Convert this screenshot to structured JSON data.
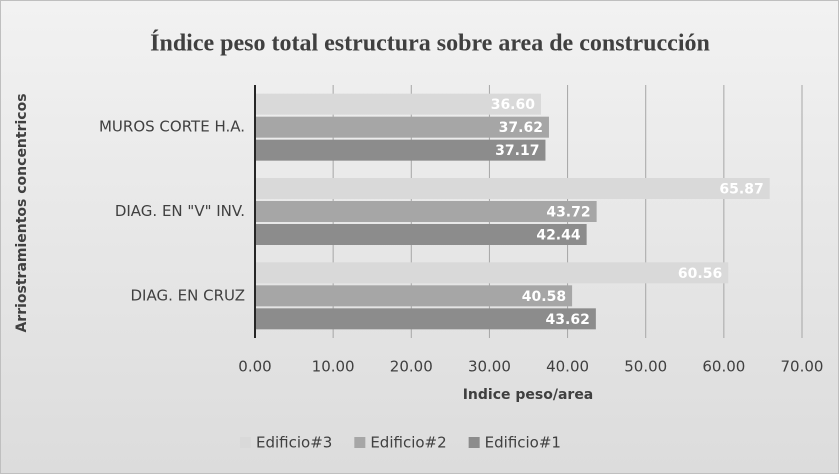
{
  "chart_data": {
    "type": "bar",
    "orientation": "horizontal",
    "title": "Índice peso total estructura sobre area de construcción",
    "xlabel": "Indice peso/area",
    "ylabel": "Arriostramientos concentricos",
    "categories": [
      "MUROS CORTE H.A.",
      "DIAG. EN \"V\" INV.",
      "DIAG. EN CRUZ"
    ],
    "series": [
      {
        "name": "Edificio#3",
        "color": "#d9d9d9",
        "values": [
          36.6,
          65.87,
          60.56
        ],
        "value_labels": [
          "36.60",
          "65.87",
          "60.56"
        ]
      },
      {
        "name": "Edificio#2",
        "color": "#a6a6a6",
        "values": [
          37.62,
          43.72,
          40.58
        ],
        "value_labels": [
          "37.62",
          "43.72",
          "40.58"
        ]
      },
      {
        "name": "Edificio#1",
        "color": "#8c8c8c",
        "values": [
          37.17,
          42.44,
          43.62
        ],
        "value_labels": [
          "37.17",
          "42.44",
          "43.62"
        ]
      }
    ],
    "xlim": [
      0,
      70
    ],
    "xticks": [
      {
        "value": 0,
        "label": "0.00"
      },
      {
        "value": 10,
        "label": "10.00"
      },
      {
        "value": 20,
        "label": "20.00"
      },
      {
        "value": 30,
        "label": "30.00"
      },
      {
        "value": 40,
        "label": "40.00"
      },
      {
        "value": 50,
        "label": "50.00"
      },
      {
        "value": 60,
        "label": "60.00"
      },
      {
        "value": 70,
        "label": "70.00"
      }
    ],
    "grid": true,
    "legend": "bottom"
  }
}
